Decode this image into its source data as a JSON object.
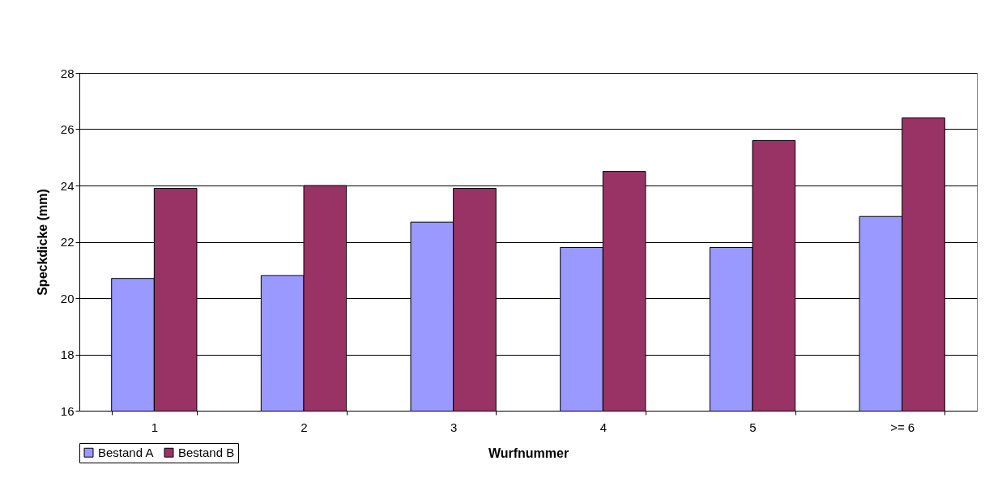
{
  "chart_data": {
    "type": "bar",
    "xlabel": "Wurfnummer",
    "ylabel": "Speckdicke (mm)",
    "categories": [
      "1",
      "2",
      "3",
      "4",
      "5",
      ">= 6"
    ],
    "series": [
      {
        "name": "Bestand A",
        "color": "#9999ff",
        "values": [
          20.7,
          20.8,
          22.7,
          21.8,
          21.8,
          22.9
        ]
      },
      {
        "name": "Bestand B",
        "color": "#993366",
        "values": [
          23.9,
          24.0,
          23.9,
          24.5,
          25.6,
          26.4
        ]
      }
    ],
    "ylim": [
      16,
      28
    ],
    "yticks": [
      16,
      18,
      20,
      22,
      24,
      26,
      28
    ],
    "grid": "y",
    "legend": "bottom left"
  }
}
